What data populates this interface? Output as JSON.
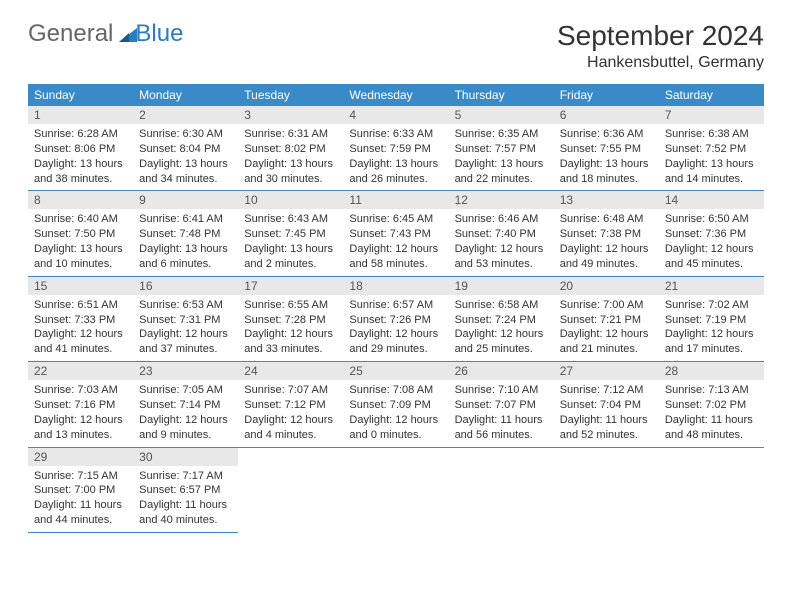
{
  "logo": {
    "part1": "General",
    "part2": "Blue"
  },
  "title": "September 2024",
  "location": "Hankensbuttel, Germany",
  "colors": {
    "header_bg": "#3a8ac8",
    "header_fg": "#ffffff",
    "daynum_bg": "#e8e8e8",
    "cell_border": "#3a8ac8",
    "text": "#333333",
    "logo_gray": "#666666",
    "logo_blue": "#2b7cc0",
    "background": "#ffffff"
  },
  "weekdays": [
    "Sunday",
    "Monday",
    "Tuesday",
    "Wednesday",
    "Thursday",
    "Friday",
    "Saturday"
  ],
  "weeks": [
    [
      {
        "n": "1",
        "sr": "Sunrise: 6:28 AM",
        "ss": "Sunset: 8:06 PM",
        "dl": "Daylight: 13 hours and 38 minutes."
      },
      {
        "n": "2",
        "sr": "Sunrise: 6:30 AM",
        "ss": "Sunset: 8:04 PM",
        "dl": "Daylight: 13 hours and 34 minutes."
      },
      {
        "n": "3",
        "sr": "Sunrise: 6:31 AM",
        "ss": "Sunset: 8:02 PM",
        "dl": "Daylight: 13 hours and 30 minutes."
      },
      {
        "n": "4",
        "sr": "Sunrise: 6:33 AM",
        "ss": "Sunset: 7:59 PM",
        "dl": "Daylight: 13 hours and 26 minutes."
      },
      {
        "n": "5",
        "sr": "Sunrise: 6:35 AM",
        "ss": "Sunset: 7:57 PM",
        "dl": "Daylight: 13 hours and 22 minutes."
      },
      {
        "n": "6",
        "sr": "Sunrise: 6:36 AM",
        "ss": "Sunset: 7:55 PM",
        "dl": "Daylight: 13 hours and 18 minutes."
      },
      {
        "n": "7",
        "sr": "Sunrise: 6:38 AM",
        "ss": "Sunset: 7:52 PM",
        "dl": "Daylight: 13 hours and 14 minutes."
      }
    ],
    [
      {
        "n": "8",
        "sr": "Sunrise: 6:40 AM",
        "ss": "Sunset: 7:50 PM",
        "dl": "Daylight: 13 hours and 10 minutes."
      },
      {
        "n": "9",
        "sr": "Sunrise: 6:41 AM",
        "ss": "Sunset: 7:48 PM",
        "dl": "Daylight: 13 hours and 6 minutes."
      },
      {
        "n": "10",
        "sr": "Sunrise: 6:43 AM",
        "ss": "Sunset: 7:45 PM",
        "dl": "Daylight: 13 hours and 2 minutes."
      },
      {
        "n": "11",
        "sr": "Sunrise: 6:45 AM",
        "ss": "Sunset: 7:43 PM",
        "dl": "Daylight: 12 hours and 58 minutes."
      },
      {
        "n": "12",
        "sr": "Sunrise: 6:46 AM",
        "ss": "Sunset: 7:40 PM",
        "dl": "Daylight: 12 hours and 53 minutes."
      },
      {
        "n": "13",
        "sr": "Sunrise: 6:48 AM",
        "ss": "Sunset: 7:38 PM",
        "dl": "Daylight: 12 hours and 49 minutes."
      },
      {
        "n": "14",
        "sr": "Sunrise: 6:50 AM",
        "ss": "Sunset: 7:36 PM",
        "dl": "Daylight: 12 hours and 45 minutes."
      }
    ],
    [
      {
        "n": "15",
        "sr": "Sunrise: 6:51 AM",
        "ss": "Sunset: 7:33 PM",
        "dl": "Daylight: 12 hours and 41 minutes."
      },
      {
        "n": "16",
        "sr": "Sunrise: 6:53 AM",
        "ss": "Sunset: 7:31 PM",
        "dl": "Daylight: 12 hours and 37 minutes."
      },
      {
        "n": "17",
        "sr": "Sunrise: 6:55 AM",
        "ss": "Sunset: 7:28 PM",
        "dl": "Daylight: 12 hours and 33 minutes."
      },
      {
        "n": "18",
        "sr": "Sunrise: 6:57 AM",
        "ss": "Sunset: 7:26 PM",
        "dl": "Daylight: 12 hours and 29 minutes."
      },
      {
        "n": "19",
        "sr": "Sunrise: 6:58 AM",
        "ss": "Sunset: 7:24 PM",
        "dl": "Daylight: 12 hours and 25 minutes."
      },
      {
        "n": "20",
        "sr": "Sunrise: 7:00 AM",
        "ss": "Sunset: 7:21 PM",
        "dl": "Daylight: 12 hours and 21 minutes."
      },
      {
        "n": "21",
        "sr": "Sunrise: 7:02 AM",
        "ss": "Sunset: 7:19 PM",
        "dl": "Daylight: 12 hours and 17 minutes."
      }
    ],
    [
      {
        "n": "22",
        "sr": "Sunrise: 7:03 AM",
        "ss": "Sunset: 7:16 PM",
        "dl": "Daylight: 12 hours and 13 minutes."
      },
      {
        "n": "23",
        "sr": "Sunrise: 7:05 AM",
        "ss": "Sunset: 7:14 PM",
        "dl": "Daylight: 12 hours and 9 minutes."
      },
      {
        "n": "24",
        "sr": "Sunrise: 7:07 AM",
        "ss": "Sunset: 7:12 PM",
        "dl": "Daylight: 12 hours and 4 minutes."
      },
      {
        "n": "25",
        "sr": "Sunrise: 7:08 AM",
        "ss": "Sunset: 7:09 PM",
        "dl": "Daylight: 12 hours and 0 minutes."
      },
      {
        "n": "26",
        "sr": "Sunrise: 7:10 AM",
        "ss": "Sunset: 7:07 PM",
        "dl": "Daylight: 11 hours and 56 minutes."
      },
      {
        "n": "27",
        "sr": "Sunrise: 7:12 AM",
        "ss": "Sunset: 7:04 PM",
        "dl": "Daylight: 11 hours and 52 minutes."
      },
      {
        "n": "28",
        "sr": "Sunrise: 7:13 AM",
        "ss": "Sunset: 7:02 PM",
        "dl": "Daylight: 11 hours and 48 minutes."
      }
    ],
    [
      {
        "n": "29",
        "sr": "Sunrise: 7:15 AM",
        "ss": "Sunset: 7:00 PM",
        "dl": "Daylight: 11 hours and 44 minutes."
      },
      {
        "n": "30",
        "sr": "Sunrise: 7:17 AM",
        "ss": "Sunset: 6:57 PM",
        "dl": "Daylight: 11 hours and 40 minutes."
      },
      null,
      null,
      null,
      null,
      null
    ]
  ]
}
